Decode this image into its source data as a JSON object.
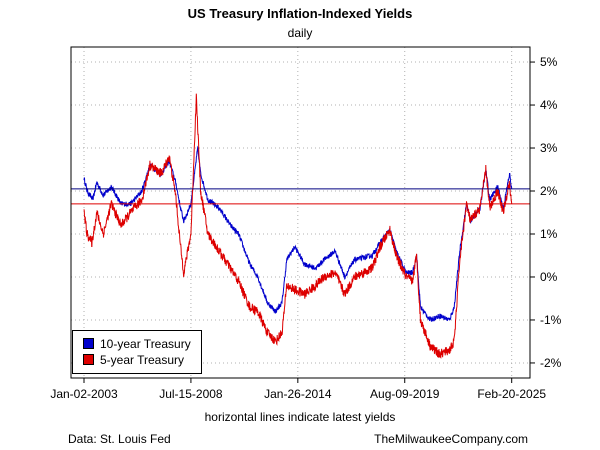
{
  "chart_data": {
    "type": "line",
    "title": "US Treasury Inflation-Indexed Yields",
    "subtitle": "daily",
    "x_tick_labels": [
      "Jan-02-2003",
      "Jul-15-2008",
      "Jan-26-2014",
      "Aug-09-2019",
      "Feb-20-2025"
    ],
    "y_tick_labels": [
      "-2%",
      "-1%",
      "0%",
      "1%",
      "2%",
      "3%",
      "4%",
      "5%"
    ],
    "xlim": [
      "2002-05-01",
      "2026-02-01"
    ],
    "ylim": [
      -2.35,
      5.35
    ],
    "y_axis_side": "right",
    "grid": true,
    "legend_position": "bottom-left",
    "note": "horizontal lines indicate latest yields",
    "source": "Data: St. Louis Fed",
    "credit": "TheMilwaukeeCompany.com",
    "series": [
      {
        "name": "10-year Treasury",
        "color": "#0000cc",
        "latest": 2.05,
        "points": [
          [
            "2003-01-02",
            2.3
          ],
          [
            "2003-03-01",
            2.0
          ],
          [
            "2003-06-15",
            1.8
          ],
          [
            "2003-09-01",
            2.2
          ],
          [
            "2004-01-01",
            1.9
          ],
          [
            "2004-06-01",
            2.1
          ],
          [
            "2004-12-01",
            1.7
          ],
          [
            "2005-06-01",
            1.7
          ],
          [
            "2006-01-01",
            2.0
          ],
          [
            "2006-06-01",
            2.6
          ],
          [
            "2007-01-01",
            2.4
          ],
          [
            "2007-06-01",
            2.7
          ],
          [
            "2007-10-01",
            2.2
          ],
          [
            "2008-01-01",
            1.6
          ],
          [
            "2008-03-01",
            1.3
          ],
          [
            "2008-07-15",
            1.7
          ],
          [
            "2008-11-20",
            3.0
          ],
          [
            "2009-01-15",
            2.4
          ],
          [
            "2009-06-01",
            1.8
          ],
          [
            "2010-01-01",
            1.6
          ],
          [
            "2010-08-01",
            1.2
          ],
          [
            "2011-01-01",
            1.0
          ],
          [
            "2011-08-01",
            0.3
          ],
          [
            "2012-01-01",
            0.0
          ],
          [
            "2012-07-01",
            -0.6
          ],
          [
            "2012-12-01",
            -0.8
          ],
          [
            "2013-04-01",
            -0.6
          ],
          [
            "2013-07-01",
            0.4
          ],
          [
            "2013-12-01",
            0.7
          ],
          [
            "2014-06-01",
            0.3
          ],
          [
            "2015-01-01",
            0.2
          ],
          [
            "2015-06-01",
            0.4
          ],
          [
            "2016-01-01",
            0.6
          ],
          [
            "2016-07-01",
            0.0
          ],
          [
            "2017-01-01",
            0.4
          ],
          [
            "2017-12-01",
            0.5
          ],
          [
            "2018-05-01",
            0.8
          ],
          [
            "2018-11-01",
            1.1
          ],
          [
            "2019-03-01",
            0.6
          ],
          [
            "2019-09-01",
            0.1
          ],
          [
            "2020-01-01",
            0.1
          ],
          [
            "2020-03-20",
            0.5
          ],
          [
            "2020-06-01",
            -0.7
          ],
          [
            "2020-12-01",
            -1.0
          ],
          [
            "2021-06-01",
            -0.9
          ],
          [
            "2021-12-01",
            -1.0
          ],
          [
            "2022-03-01",
            -0.7
          ],
          [
            "2022-06-15",
            0.6
          ],
          [
            "2022-10-20",
            1.7
          ],
          [
            "2023-01-01",
            1.3
          ],
          [
            "2023-07-01",
            1.6
          ],
          [
            "2023-10-20",
            2.5
          ],
          [
            "2024-01-01",
            1.8
          ],
          [
            "2024-06-01",
            2.1
          ],
          [
            "2024-09-15",
            1.6
          ],
          [
            "2025-01-10",
            2.4
          ],
          [
            "2025-02-20",
            2.05
          ]
        ]
      },
      {
        "name": "5-year Treasury",
        "color": "#dd0000",
        "latest": 1.7,
        "points": [
          [
            "2003-01-02",
            1.5
          ],
          [
            "2003-03-01",
            1.0
          ],
          [
            "2003-06-01",
            0.8
          ],
          [
            "2003-09-01",
            1.5
          ],
          [
            "2004-01-01",
            1.0
          ],
          [
            "2004-06-01",
            1.7
          ],
          [
            "2004-12-01",
            1.2
          ],
          [
            "2005-06-01",
            1.5
          ],
          [
            "2006-01-01",
            1.8
          ],
          [
            "2006-06-01",
            2.6
          ],
          [
            "2007-01-01",
            2.4
          ],
          [
            "2007-06-01",
            2.8
          ],
          [
            "2007-10-01",
            1.9
          ],
          [
            "2008-01-01",
            0.7
          ],
          [
            "2008-03-01",
            0.1
          ],
          [
            "2008-07-15",
            1.0
          ],
          [
            "2008-10-25",
            4.2
          ],
          [
            "2009-01-15",
            2.0
          ],
          [
            "2009-06-01",
            1.0
          ],
          [
            "2010-01-01",
            0.6
          ],
          [
            "2010-08-01",
            0.2
          ],
          [
            "2011-01-01",
            -0.1
          ],
          [
            "2011-08-01",
            -0.7
          ],
          [
            "2012-01-01",
            -0.8
          ],
          [
            "2012-07-01",
            -1.3
          ],
          [
            "2012-12-01",
            -1.5
          ],
          [
            "2013-04-01",
            -1.3
          ],
          [
            "2013-07-01",
            -0.2
          ],
          [
            "2013-12-01",
            -0.3
          ],
          [
            "2014-06-01",
            -0.4
          ],
          [
            "2015-01-01",
            -0.2
          ],
          [
            "2015-06-01",
            0.0
          ],
          [
            "2016-01-01",
            0.1
          ],
          [
            "2016-07-01",
            -0.4
          ],
          [
            "2017-01-01",
            0.0
          ],
          [
            "2017-12-01",
            0.2
          ],
          [
            "2018-05-01",
            0.7
          ],
          [
            "2018-11-01",
            1.1
          ],
          [
            "2019-03-01",
            0.5
          ],
          [
            "2019-09-01",
            0.0
          ],
          [
            "2020-01-01",
            -0.1
          ],
          [
            "2020-03-20",
            0.5
          ],
          [
            "2020-06-01",
            -1.0
          ],
          [
            "2020-12-01",
            -1.6
          ],
          [
            "2021-06-01",
            -1.8
          ],
          [
            "2021-12-01",
            -1.7
          ],
          [
            "2022-03-01",
            -1.5
          ],
          [
            "2022-06-15",
            0.4
          ],
          [
            "2022-10-20",
            1.7
          ],
          [
            "2023-01-01",
            1.3
          ],
          [
            "2023-07-01",
            1.6
          ],
          [
            "2023-10-20",
            2.5
          ],
          [
            "2024-01-01",
            1.6
          ],
          [
            "2024-06-01",
            2.0
          ],
          [
            "2024-09-15",
            1.5
          ],
          [
            "2025-01-10",
            2.2
          ],
          [
            "2025-02-20",
            1.7
          ]
        ]
      }
    ]
  }
}
